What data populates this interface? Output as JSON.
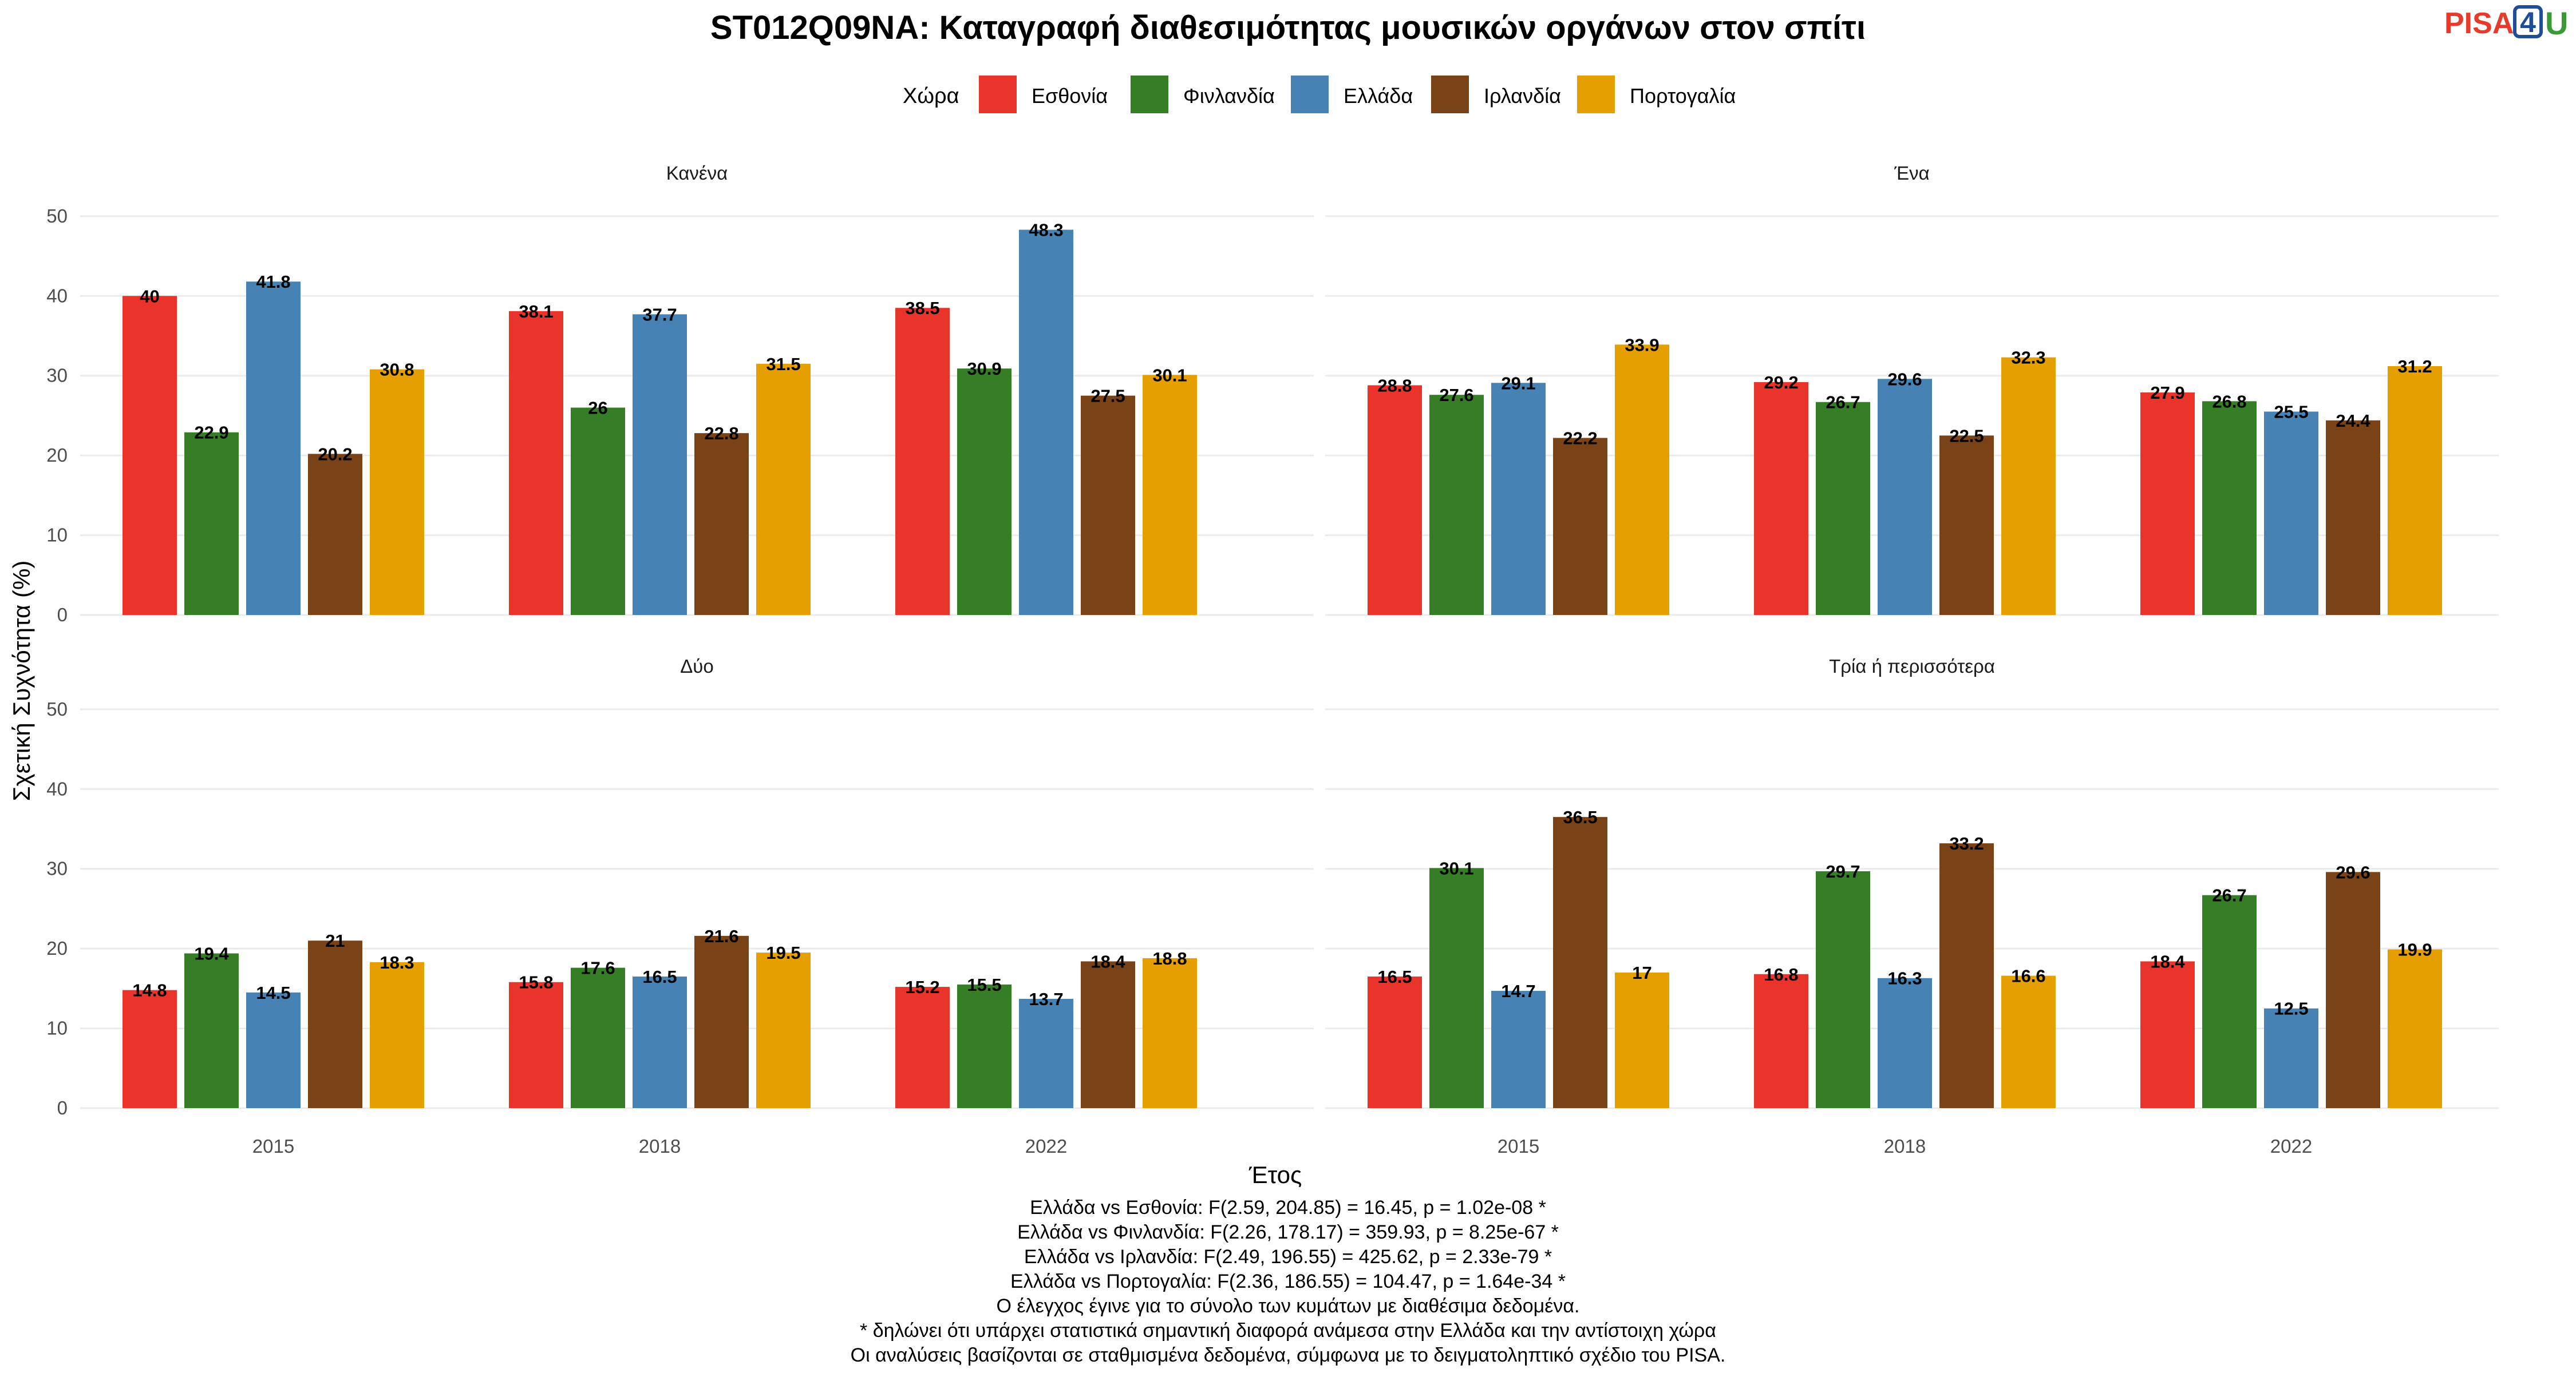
{
  "title": "ST012Q09NA: Καταγραφή διαθεσιμότητας μουσικών οργάνων στον σπίτι",
  "logo": {
    "part1": "PISA",
    "part2": "4",
    "part3": "U"
  },
  "legend": {
    "title": "Χώρα"
  },
  "axes": {
    "xlabel": "Έτος",
    "ylabel": "Σχετική Συχνότητα (%)"
  },
  "chart_data": {
    "type": "bar",
    "title": "ST012Q09NA: Καταγραφή διαθεσιμότητας μουσικών οργάνων στον σπίτι",
    "xlabel": "Έτος",
    "ylabel": "Σχετική Συχνότητα (%)",
    "ylim": [
      0,
      52
    ],
    "yticks": [
      0,
      10,
      20,
      30,
      40,
      50
    ],
    "grid": true,
    "legend_position": "top",
    "categories": [
      "2015",
      "2018",
      "2022"
    ],
    "series": [
      {
        "name": "Εσθονία",
        "color": "#e8342a"
      },
      {
        "name": "Φινλανδία",
        "color": "#357e26"
      },
      {
        "name": "Ελλάδα",
        "color": "#4682b4"
      },
      {
        "name": "Ιρλανδία",
        "color": "#7a4317"
      },
      {
        "name": "Πορτογαλία",
        "color": "#e59f00"
      }
    ],
    "panels": [
      {
        "title": "Κανένα",
        "values": [
          [
            40,
            22.9,
            41.8,
            20.2,
            30.8
          ],
          [
            38.1,
            26,
            37.7,
            22.8,
            31.5
          ],
          [
            38.5,
            30.9,
            48.3,
            27.5,
            30.1
          ]
        ]
      },
      {
        "title": "Ένα",
        "values": [
          [
            28.8,
            27.6,
            29.1,
            22.2,
            33.9
          ],
          [
            29.2,
            26.7,
            29.6,
            22.5,
            32.3
          ],
          [
            27.9,
            26.8,
            25.5,
            24.4,
            31.2
          ]
        ]
      },
      {
        "title": "Δύο",
        "values": [
          [
            14.8,
            19.4,
            14.5,
            21,
            18.3
          ],
          [
            15.8,
            17.6,
            16.5,
            21.6,
            19.5
          ],
          [
            15.2,
            15.5,
            13.7,
            18.4,
            18.8
          ]
        ]
      },
      {
        "title": "Τρία ή περισσότερα",
        "values": [
          [
            16.5,
            30.1,
            14.7,
            36.5,
            17
          ],
          [
            16.8,
            29.7,
            16.3,
            33.2,
            16.6
          ],
          [
            18.4,
            26.7,
            12.5,
            29.6,
            19.9
          ]
        ]
      }
    ]
  },
  "caption": [
    "Ελλάδα vs Εσθονία: F(2.59, 204.85) = 16.45, p = 1.02e-08 *",
    "Ελλάδα vs Φινλανδία: F(2.26, 178.17) = 359.93, p = 8.25e-67 *",
    "Ελλάδα vs Ιρλανδία: F(2.49, 196.55) = 425.62, p = 2.33e-79 *",
    "Ελλάδα vs Πορτογαλία: F(2.36, 186.55) = 104.47, p = 1.64e-34 *",
    "Ο έλεγχος έγινε για το σύνολο των κυμάτων με διαθέσιμα δεδομένα.",
    "* δηλώνει ότι υπάρχει στατιστικά σημαντική διαφορά ανάμεσα στην Ελλάδα και την αντίστοιχη χώρα",
    "Οι αναλύσεις βασίζονται σε σταθμισμένα δεδομένα, σύμφωνα με το δειγματοληπτικό σχέδιο του PISA."
  ]
}
